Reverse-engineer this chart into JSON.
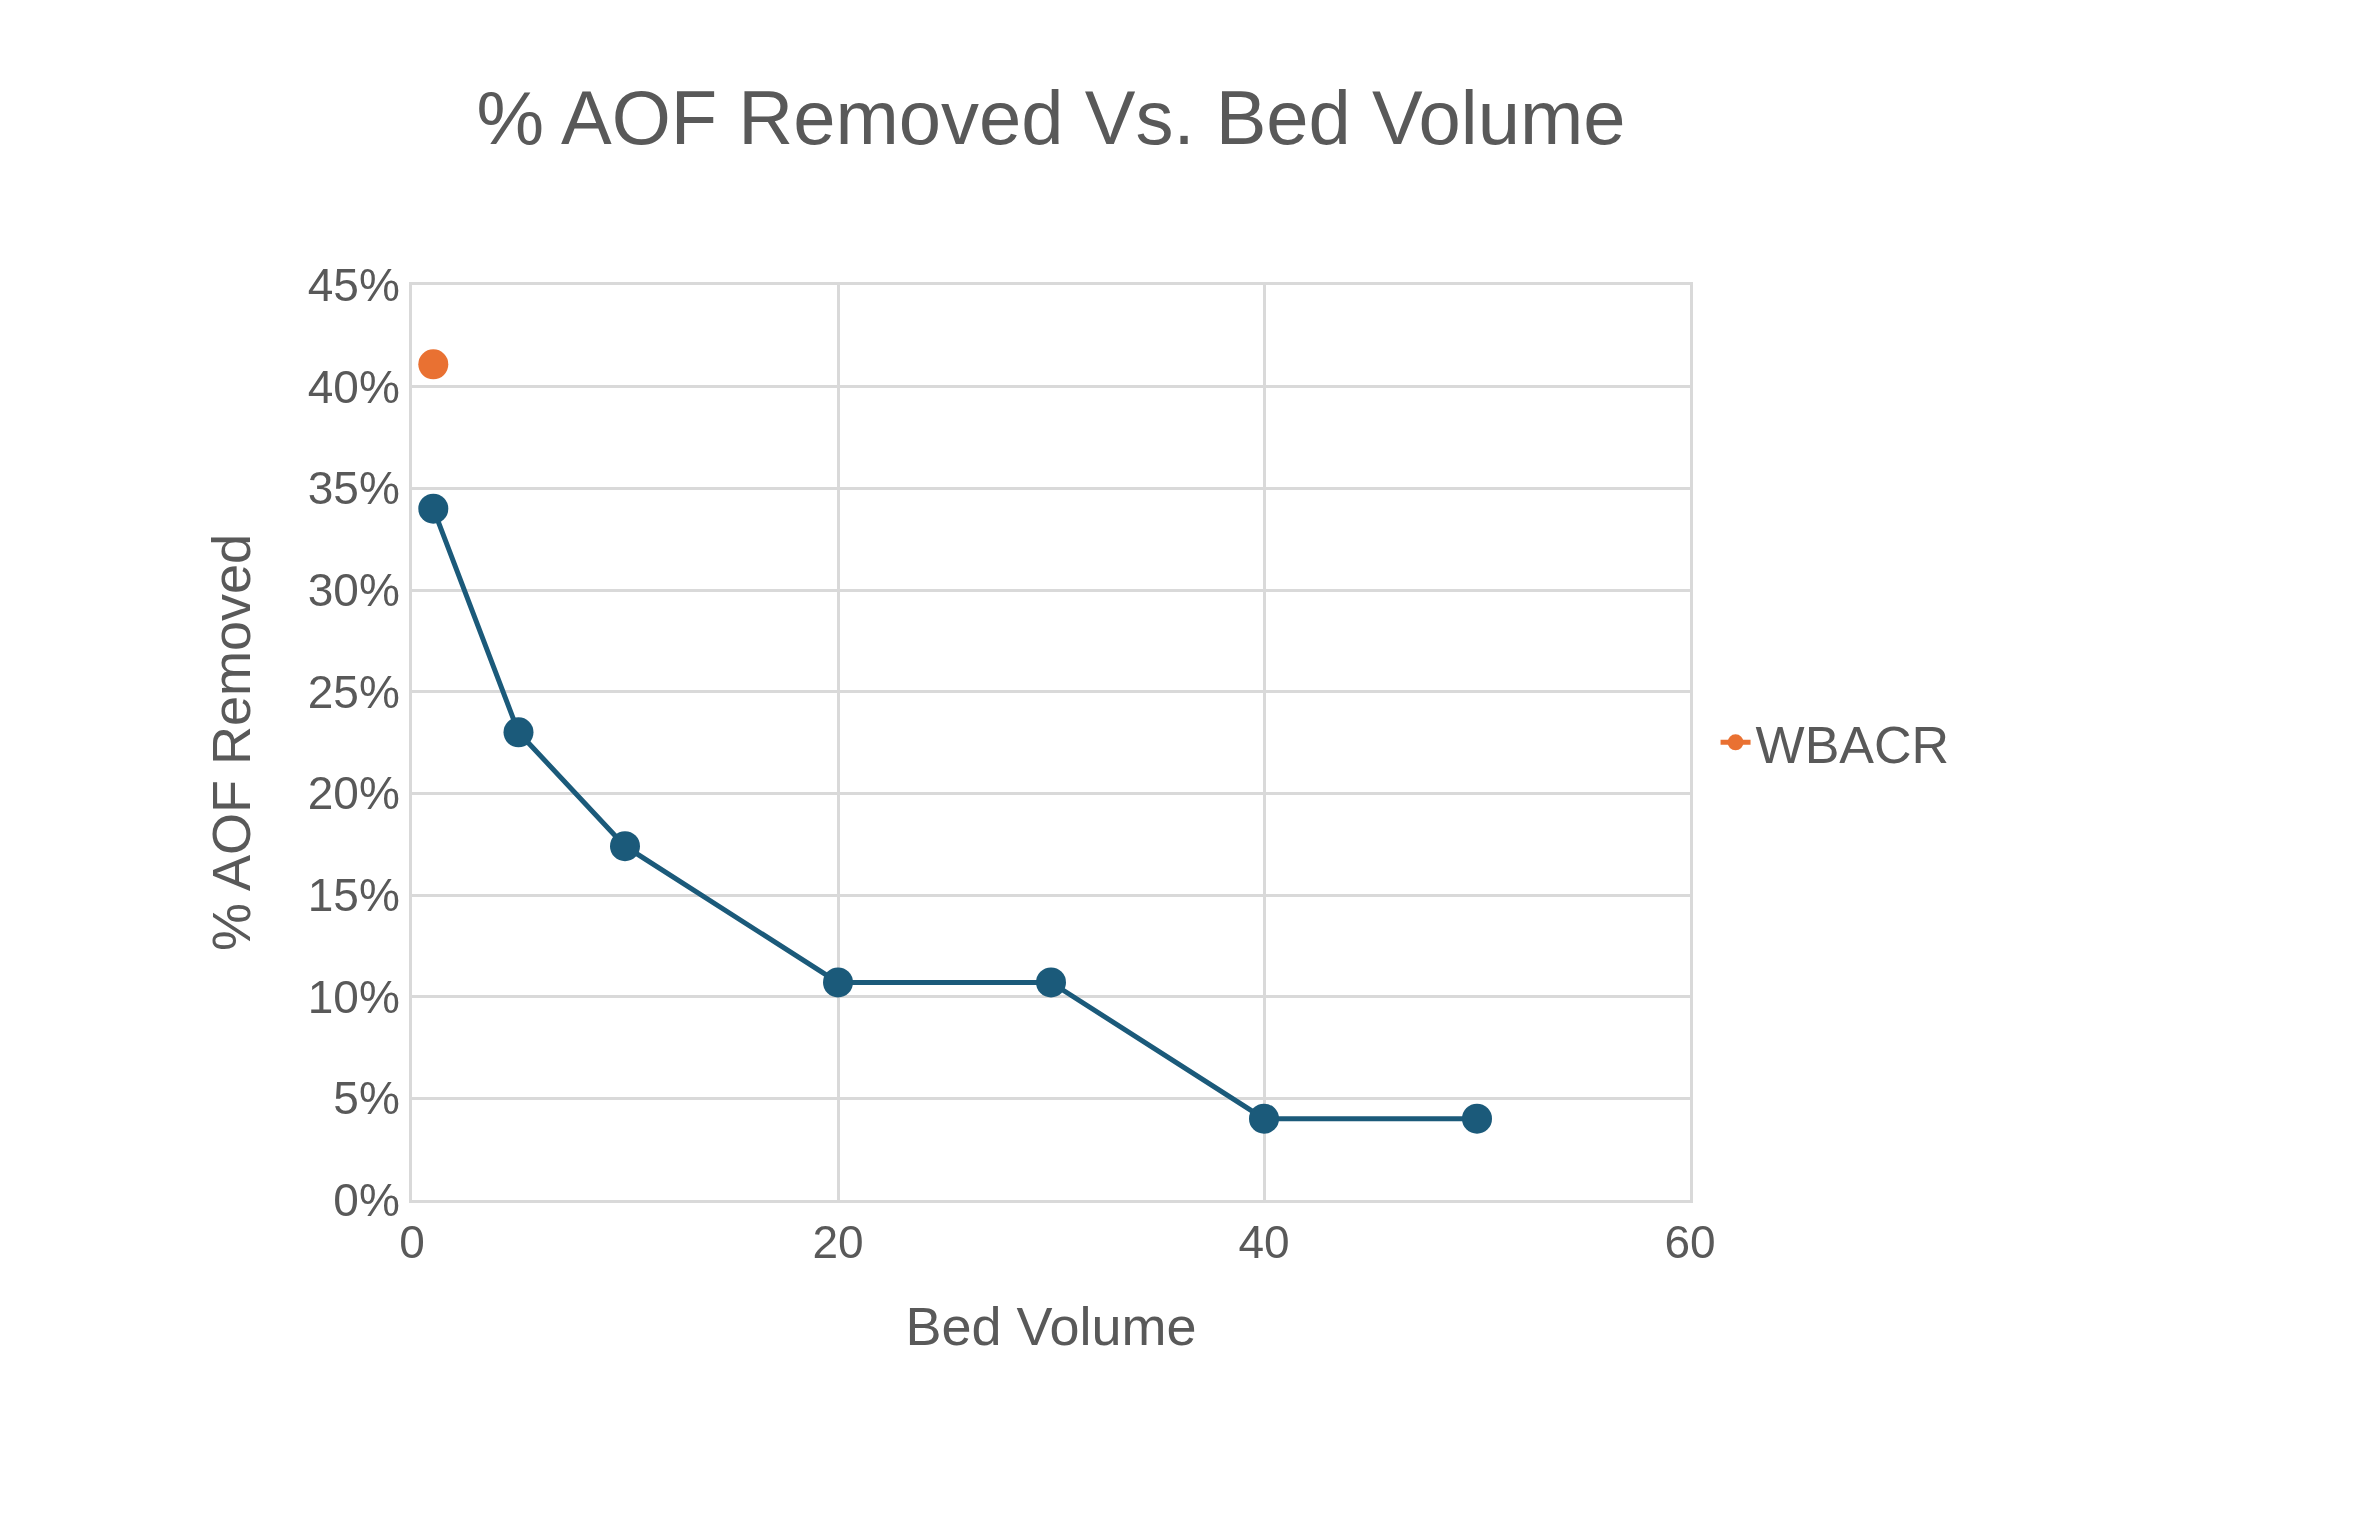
{
  "chart_data": {
    "type": "line",
    "title": "% AOF Removed Vs. Bed Volume",
    "xlabel": "Bed Volume",
    "ylabel": "% AOF Removed",
    "series": [
      {
        "color": "#1b5a7a",
        "x": [
          1,
          5,
          10,
          20,
          30,
          40,
          50
        ],
        "values": [
          34,
          23,
          17.4,
          10.7,
          10.7,
          4,
          4
        ]
      },
      {
        "name": "WBACR",
        "color": "#e97132",
        "x": [
          1
        ],
        "values": [
          41.1
        ]
      }
    ],
    "xlim": [
      0,
      60
    ],
    "xticks": [
      0,
      20,
      40,
      60
    ],
    "ylim": [
      0,
      45
    ],
    "yticks": [
      {
        "value": 0,
        "label": "0%"
      },
      {
        "value": 5,
        "label": "5%"
      },
      {
        "value": 10,
        "label": "10%"
      },
      {
        "value": 15,
        "label": "15%"
      },
      {
        "value": 20,
        "label": "20%"
      },
      {
        "value": 25,
        "label": "25%"
      },
      {
        "value": 30,
        "label": "30%"
      },
      {
        "value": 35,
        "label": "35%"
      },
      {
        "value": 40,
        "label": "40%"
      },
      {
        "value": 45,
        "label": "45%"
      }
    ],
    "grid": true,
    "legend": "right",
    "marker": "circle",
    "line_style": "solid"
  }
}
